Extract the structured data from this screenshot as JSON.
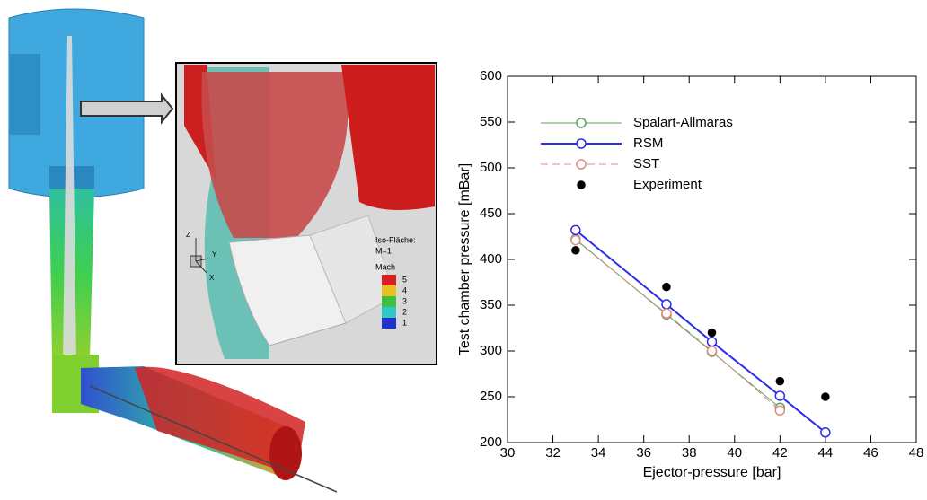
{
  "chart_data": {
    "type": "line",
    "x_label": "Ejector-pressure [bar]",
    "y_label": "Test chamber pressure [mBar]",
    "xlim": [
      30,
      48
    ],
    "xticks": [
      30,
      32,
      34,
      36,
      38,
      40,
      42,
      44,
      46,
      48
    ],
    "ylim": [
      200,
      600
    ],
    "yticks": [
      200,
      250,
      300,
      350,
      400,
      450,
      500,
      550,
      600
    ],
    "legend": "upper-left",
    "series": [
      {
        "name": "Spalart-Allmaras",
        "color": "#5f9e5f",
        "line": true,
        "line_width": 1,
        "dash": false,
        "marker": "open",
        "x": [
          33,
          37,
          39,
          42
        ],
        "values": [
          422,
          340,
          299,
          238
        ]
      },
      {
        "name": "RSM",
        "color": "#2b2bf0",
        "line": true,
        "line_width": 2,
        "dash": false,
        "marker": "open",
        "x": [
          33,
          37,
          39,
          42,
          44
        ],
        "values": [
          432,
          351,
          310,
          251,
          211
        ]
      },
      {
        "name": "SST",
        "color": "#e08a80",
        "line": true,
        "line_width": 1,
        "dash": true,
        "marker": "open",
        "x": [
          33,
          37,
          39,
          42
        ],
        "values": [
          421,
          341,
          300,
          235
        ]
      },
      {
        "name": "Experiment",
        "color": "#000000",
        "line": false,
        "line_width": 0,
        "dash": false,
        "marker": "filled",
        "x": [
          33,
          37,
          39,
          42,
          44
        ],
        "values": [
          410,
          370,
          320,
          267,
          250
        ]
      }
    ]
  },
  "inset": {
    "iso_title": "Iso-Fläche:",
    "iso_value": "M=1",
    "scale_title": "Mach",
    "levels": [
      "5",
      "4",
      "3",
      "2",
      "1"
    ],
    "axes": [
      "Z",
      "Y",
      "X"
    ]
  }
}
